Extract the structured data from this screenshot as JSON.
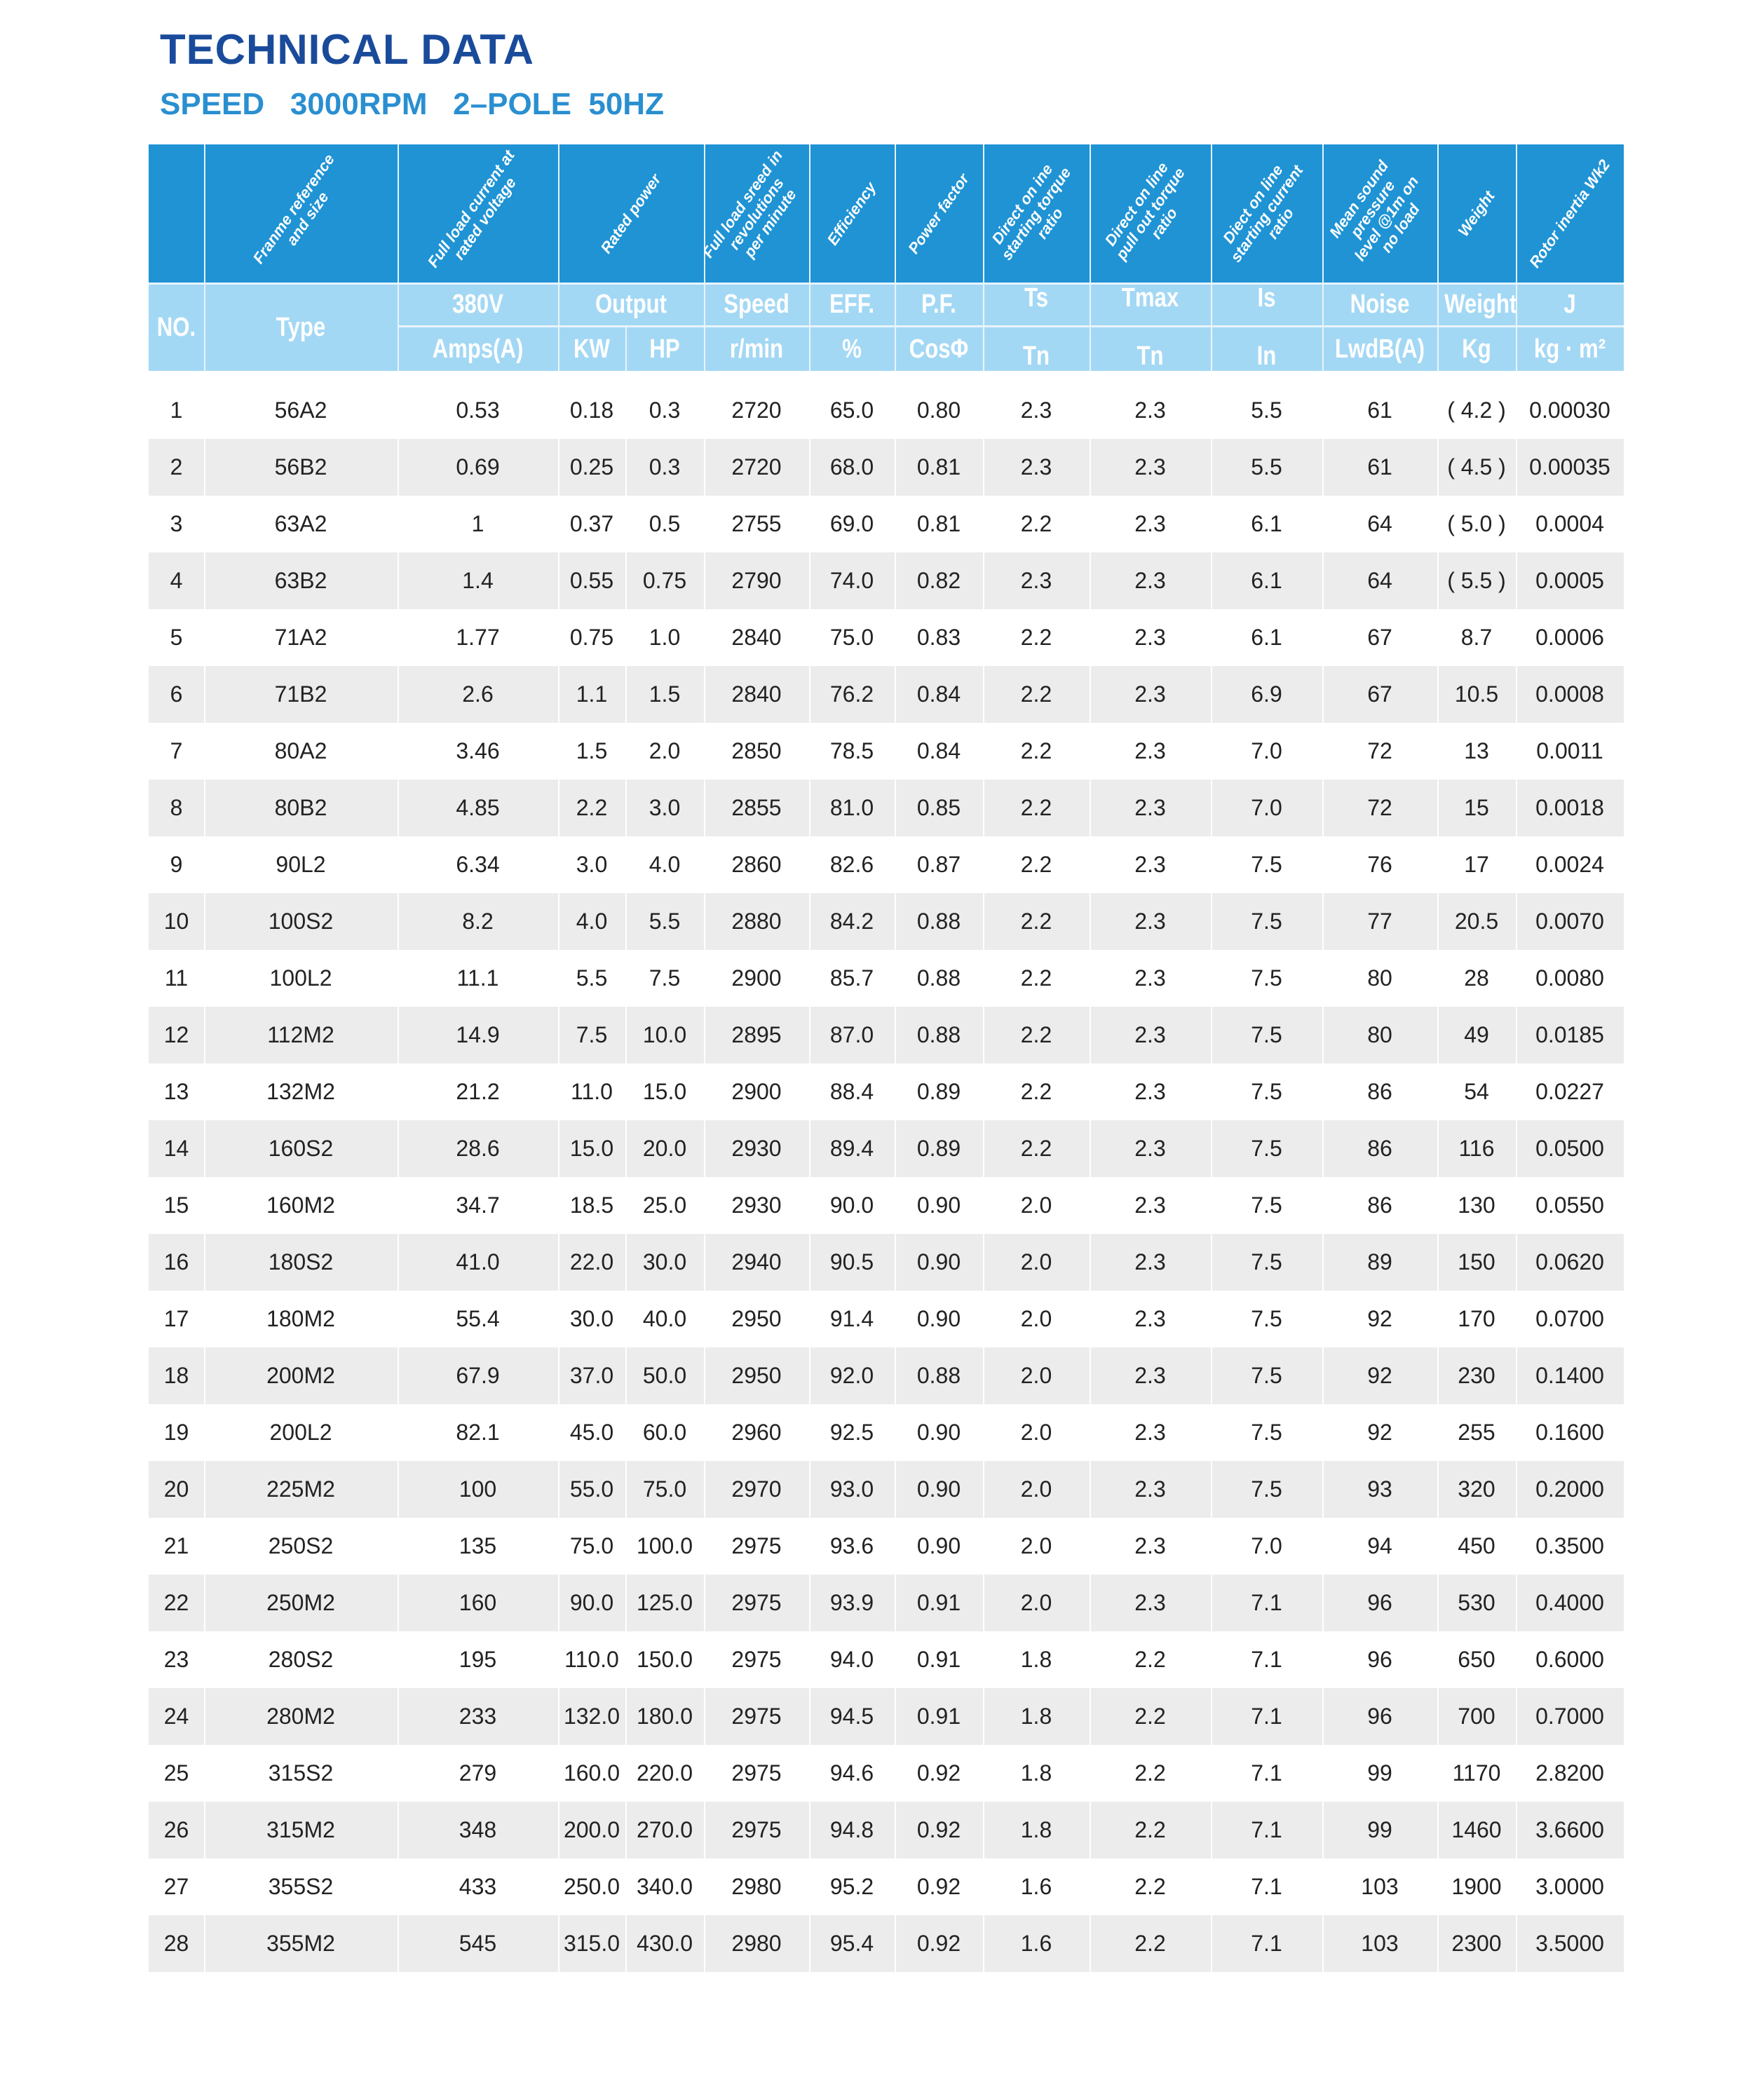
{
  "title": "TECHNICAL DATA",
  "subtitle": "SPEED   3000RPM   2–POLE  50HZ",
  "colors": {
    "title": "#1a4b9b",
    "subtitle": "#2a8fd0",
    "header_dark": "#1f93d4",
    "header_light": "#a3d8f4",
    "row_alt": "#ececec"
  },
  "header": {
    "rotated": [
      "",
      "Franme reference\nand size",
      "Full load current at\nrated voltage",
      "Rated power",
      "Full load sreed in\nrevolutions\nper minute",
      "Efficiency",
      "Power factor",
      "Direct on ine\nstarting torque\nratio",
      "Direct on line\npull out torque\nratio",
      "Diect on line\nstarting current\nratio",
      "Mean sound\npressure\nlevel @1m on\nno load",
      "Weight",
      "Rotor inertia Wk2"
    ],
    "no": "NO.",
    "type": "Type",
    "voltage": "380V",
    "output": "Output",
    "speed": "Speed",
    "eff": "EFF.",
    "pf": "P.F.",
    "ts": "Ts",
    "tmax": "Tmax",
    "is": "Is",
    "noise": "Noise",
    "weight": "Weight",
    "j": "J",
    "amps": "Amps(A)",
    "kw": "KW",
    "hp": "HP",
    "rmin": "r/min",
    "pct": "%",
    "cos": "CosΦ",
    "tn1": "Tn",
    "tn2": "Tn",
    "in": "In",
    "lwdb": "LwdB(A)",
    "kg": "Kg",
    "kgm2": "kg · m²"
  },
  "rows": [
    [
      "1",
      "56A2",
      "0.53",
      "0.18",
      "0.3",
      "2720",
      "65.0",
      "0.80",
      "2.3",
      "2.3",
      "5.5",
      "61",
      "( 4.2 )",
      "0.00030"
    ],
    [
      "2",
      "56B2",
      "0.69",
      "0.25",
      "0.3",
      "2720",
      "68.0",
      "0.81",
      "2.3",
      "2.3",
      "5.5",
      "61",
      "( 4.5 )",
      "0.00035"
    ],
    [
      "3",
      "63A2",
      "1",
      "0.37",
      "0.5",
      "2755",
      "69.0",
      "0.81",
      "2.2",
      "2.3",
      "6.1",
      "64",
      "( 5.0 )",
      "0.0004"
    ],
    [
      "4",
      "63B2",
      "1.4",
      "0.55",
      "0.75",
      "2790",
      "74.0",
      "0.82",
      "2.3",
      "2.3",
      "6.1",
      "64",
      "( 5.5 )",
      "0.0005"
    ],
    [
      "5",
      "71A2",
      "1.77",
      "0.75",
      "1.0",
      "2840",
      "75.0",
      "0.83",
      "2.2",
      "2.3",
      "6.1",
      "67",
      "8.7",
      "0.0006"
    ],
    [
      "6",
      "71B2",
      "2.6",
      "1.1",
      "1.5",
      "2840",
      "76.2",
      "0.84",
      "2.2",
      "2.3",
      "6.9",
      "67",
      "10.5",
      "0.0008"
    ],
    [
      "7",
      "80A2",
      "3.46",
      "1.5",
      "2.0",
      "2850",
      "78.5",
      "0.84",
      "2.2",
      "2.3",
      "7.0",
      "72",
      "13",
      "0.0011"
    ],
    [
      "8",
      "80B2",
      "4.85",
      "2.2",
      "3.0",
      "2855",
      "81.0",
      "0.85",
      "2.2",
      "2.3",
      "7.0",
      "72",
      "15",
      "0.0018"
    ],
    [
      "9",
      "90L2",
      "6.34",
      "3.0",
      "4.0",
      "2860",
      "82.6",
      "0.87",
      "2.2",
      "2.3",
      "7.5",
      "76",
      "17",
      "0.0024"
    ],
    [
      "10",
      "100S2",
      "8.2",
      "4.0",
      "5.5",
      "2880",
      "84.2",
      "0.88",
      "2.2",
      "2.3",
      "7.5",
      "77",
      "20.5",
      "0.0070"
    ],
    [
      "11",
      "100L2",
      "11.1",
      "5.5",
      "7.5",
      "2900",
      "85.7",
      "0.88",
      "2.2",
      "2.3",
      "7.5",
      "80",
      "28",
      "0.0080"
    ],
    [
      "12",
      "112M2",
      "14.9",
      "7.5",
      "10.0",
      "2895",
      "87.0",
      "0.88",
      "2.2",
      "2.3",
      "7.5",
      "80",
      "49",
      "0.0185"
    ],
    [
      "13",
      "132M2",
      "21.2",
      "11.0",
      "15.0",
      "2900",
      "88.4",
      "0.89",
      "2.2",
      "2.3",
      "7.5",
      "86",
      "54",
      "0.0227"
    ],
    [
      "14",
      "160S2",
      "28.6",
      "15.0",
      "20.0",
      "2930",
      "89.4",
      "0.89",
      "2.2",
      "2.3",
      "7.5",
      "86",
      "116",
      "0.0500"
    ],
    [
      "15",
      "160M2",
      "34.7",
      "18.5",
      "25.0",
      "2930",
      "90.0",
      "0.90",
      "2.0",
      "2.3",
      "7.5",
      "86",
      "130",
      "0.0550"
    ],
    [
      "16",
      "180S2",
      "41.0",
      "22.0",
      "30.0",
      "2940",
      "90.5",
      "0.90",
      "2.0",
      "2.3",
      "7.5",
      "89",
      "150",
      "0.0620"
    ],
    [
      "17",
      "180M2",
      "55.4",
      "30.0",
      "40.0",
      "2950",
      "91.4",
      "0.90",
      "2.0",
      "2.3",
      "7.5",
      "92",
      "170",
      "0.0700"
    ],
    [
      "18",
      "200M2",
      "67.9",
      "37.0",
      "50.0",
      "2950",
      "92.0",
      "0.88",
      "2.0",
      "2.3",
      "7.5",
      "92",
      "230",
      "0.1400"
    ],
    [
      "19",
      "200L2",
      "82.1",
      "45.0",
      "60.0",
      "2960",
      "92.5",
      "0.90",
      "2.0",
      "2.3",
      "7.5",
      "92",
      "255",
      "0.1600"
    ],
    [
      "20",
      "225M2",
      "100",
      "55.0",
      "75.0",
      "2970",
      "93.0",
      "0.90",
      "2.0",
      "2.3",
      "7.5",
      "93",
      "320",
      "0.2000"
    ],
    [
      "21",
      "250S2",
      "135",
      "75.0",
      "100.0",
      "2975",
      "93.6",
      "0.90",
      "2.0",
      "2.3",
      "7.0",
      "94",
      "450",
      "0.3500"
    ],
    [
      "22",
      "250M2",
      "160",
      "90.0",
      "125.0",
      "2975",
      "93.9",
      "0.91",
      "2.0",
      "2.3",
      "7.1",
      "96",
      "530",
      "0.4000"
    ],
    [
      "23",
      "280S2",
      "195",
      "110.0",
      "150.0",
      "2975",
      "94.0",
      "0.91",
      "1.8",
      "2.2",
      "7.1",
      "96",
      "650",
      "0.6000"
    ],
    [
      "24",
      "280M2",
      "233",
      "132.0",
      "180.0",
      "2975",
      "94.5",
      "0.91",
      "1.8",
      "2.2",
      "7.1",
      "96",
      "700",
      "0.7000"
    ],
    [
      "25",
      "315S2",
      "279",
      "160.0",
      "220.0",
      "2975",
      "94.6",
      "0.92",
      "1.8",
      "2.2",
      "7.1",
      "99",
      "1170",
      "2.8200"
    ],
    [
      "26",
      "315M2",
      "348",
      "200.0",
      "270.0",
      "2975",
      "94.8",
      "0.92",
      "1.8",
      "2.2",
      "7.1",
      "99",
      "1460",
      "3.6600"
    ],
    [
      "27",
      "355S2",
      "433",
      "250.0",
      "340.0",
      "2980",
      "95.2",
      "0.92",
      "1.6",
      "2.2",
      "7.1",
      "103",
      "1900",
      "3.0000"
    ],
    [
      "28",
      "355M2",
      "545",
      "315.0",
      "430.0",
      "2980",
      "95.4",
      "0.92",
      "1.6",
      "2.2",
      "7.1",
      "103",
      "2300",
      "3.5000"
    ]
  ]
}
